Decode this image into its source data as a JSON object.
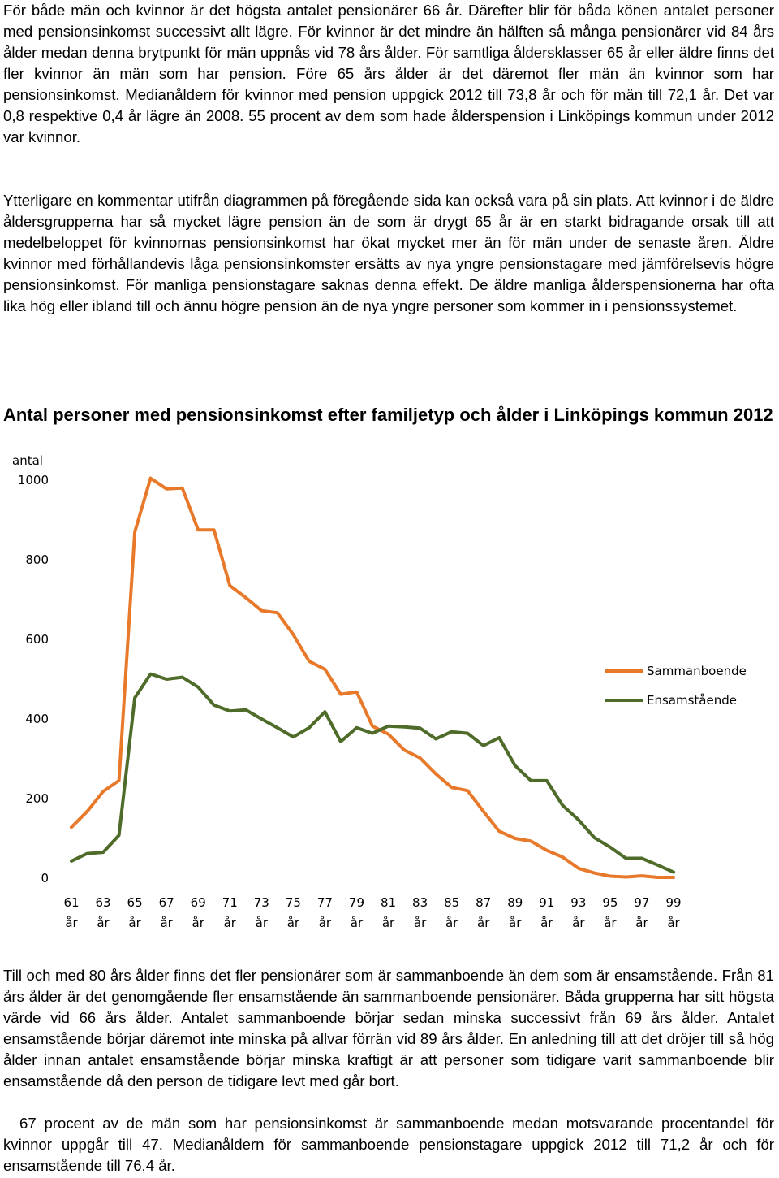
{
  "paragraphs": {
    "p1": "För både män och kvinnor är det högsta antalet pensionärer 66 år. Därefter blir för båda könen antalet personer med pensionsinkomst successivt allt lägre. För kvinnor är det mindre än hälften så många pensionärer vid 84 års ålder medan denna brytpunkt för män uppnås vid 78 års ålder. För samtliga åldersklasser 65 år eller äldre finns det fler kvinnor än män som har pension. Före 65 års ålder är det däremot fler män än kvinnor som har pensionsinkomst. Medianåldern för kvinnor med pension uppgick 2012 till 73,8 år och för män till 72,1 år. Det var 0,8 respektive 0,4 år lägre än 2008. 55 procent av dem som hade ålderspension i Linköpings kommun under 2012 var kvinnor.",
    "p2": "Ytterligare en kommentar utifrån diagrammen på föregående sida kan också vara på sin plats. Att kvinnor i de äldre åldersgrupperna har så mycket lägre pension än de som är drygt 65 år är en starkt bidragande orsak till att medelbeloppet för kvinnornas pensionsinkomst har ökat mycket mer än för män under de senaste åren. Äldre kvinnor med förhållandevis låga pensionsinkomster ersätts av nya yngre pensionstagare med jämförelsevis högre pensionsinkomst. För manliga pensionstagare saknas denna effekt. De äldre manliga ålderspensionerna har ofta lika hög eller ibland till och ännu högre pension än de nya yngre personer som kommer in i pensionssystemet.",
    "p4": "Till och med 80 års ålder finns det fler pensionärer som är sammanboende än dem som är ensamstående. Från 81 års ålder är det genomgående fler ensamstående än sammanboende pensionärer. Båda grupperna har sitt högsta värde vid 66 års ålder. Antalet sammanboende börjar sedan minska successivt från 69 års ålder. Antalet ensamstående börjar däremot inte minska på allvar förrän vid 89 års ålder. En anledning till att det dröjer till så hög ålder innan antalet ensamstående börjar minska kraftigt är att personer som tidigare varit sammanboende blir ensamstående då den person de tidigare levt med går bort.",
    "p5": "67 procent av de män som har pensionsinkomst är sammanboende medan motsvarande procentandel för kvinnor uppgår till 47. Medianåldern för sammanboende pensionstagare uppgick 2012 till 71,2 år och för ensamstående till 76,4 år."
  },
  "chart_data": {
    "type": "line",
    "title": "Antal personer med pensionsinkomst efter familjetyp och ålder i Linköpings kommun 2012",
    "ylabel": "antal",
    "xlabel": "",
    "ylim": [
      0,
      1000
    ],
    "yticks": [
      0,
      200,
      400,
      600,
      800,
      1000
    ],
    "x": [
      61,
      62,
      63,
      64,
      65,
      66,
      67,
      68,
      69,
      70,
      71,
      72,
      73,
      74,
      75,
      76,
      77,
      78,
      79,
      80,
      81,
      82,
      83,
      84,
      85,
      86,
      87,
      88,
      89,
      90,
      91,
      92,
      93,
      94,
      95,
      96,
      97,
      98,
      99
    ],
    "xtick_labels": [
      "61",
      "63",
      "65",
      "67",
      "69",
      "71",
      "73",
      "75",
      "77",
      "79",
      "81",
      "83",
      "85",
      "87",
      "89",
      "91",
      "93",
      "95",
      "97",
      "99"
    ],
    "xtick_unit": "år",
    "grid": false,
    "legend_position": "right",
    "series": [
      {
        "name": "Sammanboende",
        "color": "#E8792A",
        "values": [
          128,
          168,
          218,
          245,
          870,
          1005,
          978,
          980,
          875,
          875,
          735,
          705,
          672,
          667,
          612,
          545,
          525,
          462,
          468,
          382,
          362,
          322,
          302,
          262,
          228,
          220,
          168,
          118,
          100,
          93,
          70,
          53,
          25,
          13,
          5,
          3,
          6,
          2,
          2
        ]
      },
      {
        "name": "Ensamstående",
        "color": "#4E6B2A",
        "values": [
          43,
          62,
          65,
          108,
          453,
          513,
          500,
          505,
          480,
          435,
          420,
          423,
          400,
          378,
          355,
          378,
          418,
          343,
          378,
          364,
          382,
          380,
          377,
          350,
          368,
          364,
          333,
          353,
          283,
          245,
          245,
          183,
          147,
          102,
          78,
          50,
          50,
          33,
          15
        ]
      }
    ]
  }
}
